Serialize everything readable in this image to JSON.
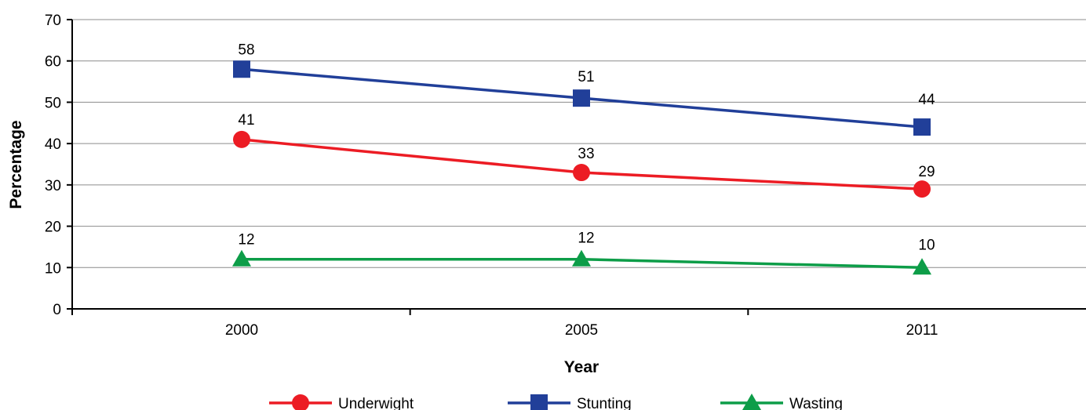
{
  "chart_data": {
    "type": "line",
    "x": [
      "2000",
      "2005",
      "2011"
    ],
    "xlabel": "Year",
    "ylabel": "Percentage",
    "ylim": [
      0,
      70
    ],
    "yticks": [
      0,
      10,
      20,
      30,
      40,
      50,
      60,
      70
    ],
    "grid": true,
    "legend_position": "bottom",
    "series": [
      {
        "name": "Underwight",
        "values": [
          41,
          33,
          29
        ],
        "color": "#ec1c24",
        "marker": "circle"
      },
      {
        "name": "Stunting",
        "values": [
          58,
          51,
          44
        ],
        "color": "#213f99",
        "marker": "square"
      },
      {
        "name": "Wasting",
        "values": [
          12,
          12,
          10
        ],
        "color": "#0d9d48",
        "marker": "triangle"
      }
    ]
  }
}
